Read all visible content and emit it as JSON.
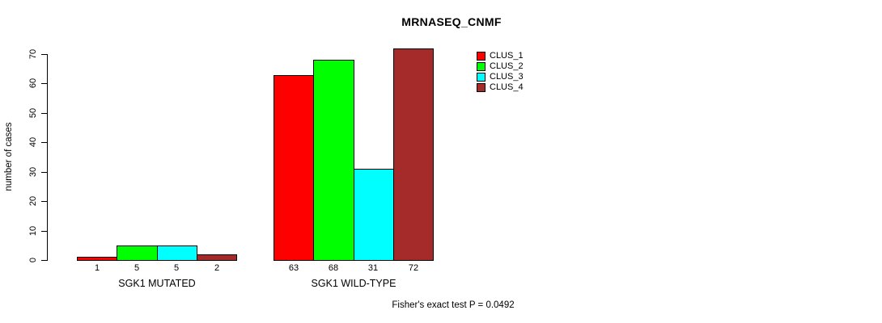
{
  "chart_data": {
    "type": "bar",
    "title": "MRNASEQ_CNMF",
    "ylabel": "number of cases",
    "ylim": [
      0,
      70
    ],
    "yticks": [
      0,
      10,
      20,
      30,
      40,
      50,
      60,
      70
    ],
    "grid": false,
    "categories": [
      "SGK1 MUTATED",
      "SGK1 WILD-TYPE"
    ],
    "series": [
      {
        "name": "CLUS_1",
        "color": "#ff0000",
        "values": [
          1,
          63
        ]
      },
      {
        "name": "CLUS_2",
        "color": "#00ff00",
        "values": [
          5,
          68
        ]
      },
      {
        "name": "CLUS_3",
        "color": "#00ffff",
        "values": [
          5,
          31
        ]
      },
      {
        "name": "CLUS_4",
        "color": "#a52a2a",
        "values": [
          2,
          72
        ]
      }
    ],
    "bar_value_labels": [
      [
        "1",
        "5",
        "5",
        "2"
      ],
      [
        "63",
        "68",
        "31",
        "72"
      ]
    ],
    "legend_position": "top-right",
    "legend_entries": [
      "CLUS_1",
      "CLUS_2",
      "CLUS_3",
      "CLUS_4"
    ],
    "annotation": "Fisher's exact test P = 0.0492"
  },
  "colors": {
    "background": "#ffffff",
    "axis": "#000000",
    "text": "#000000",
    "bar_border": "#000000",
    "clus_1": "#ff0000",
    "clus_2": "#00ff00",
    "clus_3": "#00ffff",
    "clus_4": "#a52a2a"
  }
}
